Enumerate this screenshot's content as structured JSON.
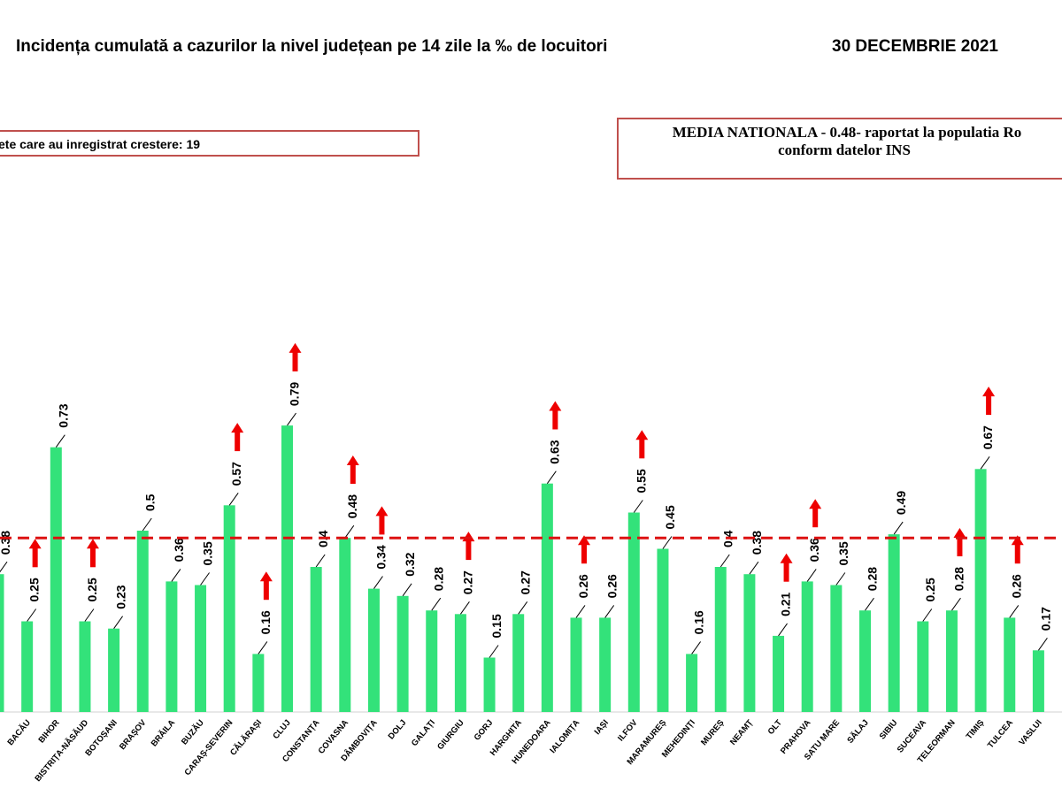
{
  "header": {
    "title": "Incidența cumulată a cazurilor la nivel județean pe 14 zile la ‰ de locuitori",
    "date": "30 DECEMBRIE 2021"
  },
  "info_box": {
    "text": "ete care au inregistrat crestere: 19"
  },
  "national_box": {
    "line1": "MEDIA NATIONALA - 0.48-  raportat la populatia Ro",
    "line2": "conform datelor INS"
  },
  "colors": {
    "bar": "#33e27a",
    "arrow": "#ee0000",
    "average_line": "#dd1111",
    "box_border": "#c0504d"
  },
  "chart_data": {
    "type": "bar",
    "title": "Incidența cumulată a cazurilor la nivel județean pe 14 zile la ‰ de locuitori",
    "xlabel": "",
    "ylabel": "",
    "ylim": [
      0,
      0.9
    ],
    "average_line": 0.48,
    "first_visible_label": "0.38",
    "categories": [
      "",
      "BACĂU",
      "BIHOR",
      "BISTRIȚA-NĂSĂUD",
      "BOTOȘANI",
      "BRAȘOV",
      "BRĂILA",
      "BUZĂU",
      "CARAȘ-SEVERIN",
      "CĂLĂRAȘI",
      "CLUJ",
      "CONSTANȚA",
      "COVASNA",
      "DÂMBOVIȚA",
      "DOLJ",
      "GALAȚI",
      "GIURGIU",
      "GORJ",
      "HARGHITA",
      "HUNEDOARA",
      "IALOMIȚA",
      "IAȘI",
      "ILFOV",
      "MARAMUREȘ",
      "MEHEDINȚI",
      "MUREȘ",
      "NEAMȚ",
      "OLT",
      "PRAHOVA",
      "SATU MARE",
      "SĂLAJ",
      "SIBIU",
      "SUCEAVA",
      "TELEORMAN",
      "TIMIȘ",
      "TULCEA",
      "VASLUI"
    ],
    "values": [
      0.38,
      0.25,
      0.73,
      0.25,
      0.23,
      0.5,
      0.36,
      0.35,
      0.57,
      0.16,
      0.79,
      0.4,
      0.48,
      0.34,
      0.32,
      0.28,
      0.27,
      0.15,
      0.27,
      0.63,
      0.26,
      0.26,
      0.55,
      0.45,
      0.16,
      0.4,
      0.38,
      0.21,
      0.36,
      0.35,
      0.28,
      0.49,
      0.25,
      0.28,
      0.67,
      0.26,
      0.17
    ],
    "labels": [
      "0.38",
      "0.25",
      "0.73",
      "0.25",
      "0.23",
      "0.5",
      "0.36",
      "0.35",
      "0.57",
      "0.16",
      "0.79",
      "0.4",
      "0.48",
      "0.34",
      "0.32",
      "0.28",
      "0.27",
      "0.15",
      "0.27",
      "0.63",
      "0.26",
      "0.26",
      "0.55",
      "0.45",
      "0.16",
      "0.4",
      "0.38",
      "0.21",
      "0.36",
      "0.35",
      "0.28",
      "0.49",
      "0.25",
      "0.28",
      "0.67",
      "0.26",
      "0.17"
    ],
    "increase": [
      false,
      true,
      false,
      true,
      false,
      false,
      false,
      false,
      true,
      true,
      true,
      false,
      true,
      true,
      false,
      false,
      true,
      false,
      false,
      true,
      true,
      false,
      true,
      false,
      false,
      false,
      false,
      true,
      true,
      false,
      false,
      false,
      false,
      true,
      true,
      true,
      false
    ]
  }
}
